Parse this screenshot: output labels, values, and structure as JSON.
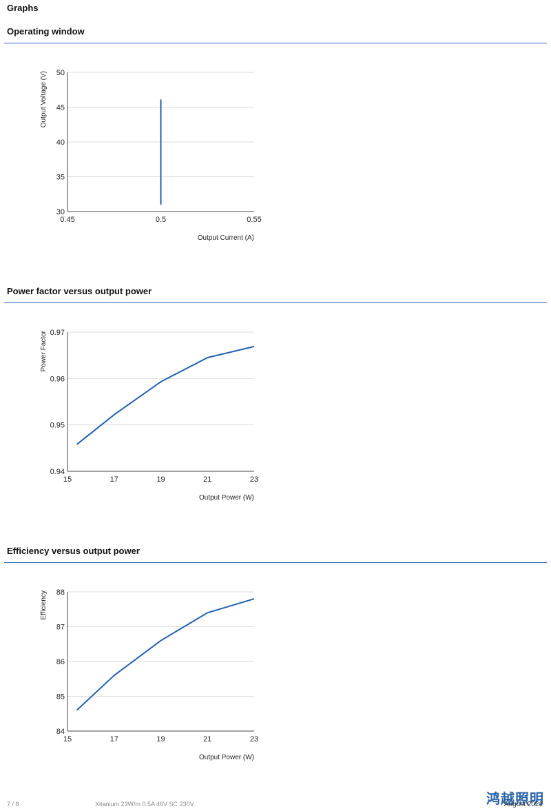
{
  "page": {
    "heading": "Graphs",
    "footer": {
      "page_number": "7 / 8",
      "product": "Xitanium 23W/m 0.5A 46V SC 230V",
      "brand": "鸿越照明",
      "date": "August 2021"
    }
  },
  "sections": [
    {
      "title": "Operating window"
    },
    {
      "title": "Power factor versus output power"
    },
    {
      "title": "Efficiency versus output power"
    }
  ],
  "colors": {
    "line": "#1f5fae",
    "grid": "#dddddd",
    "rule": "#2b63b5"
  },
  "chart_data": [
    {
      "type": "line",
      "xlabel": "Output Current (A)",
      "ylabel": "Output Voltage (V)",
      "xlim": [
        0.45,
        0.55
      ],
      "ylim": [
        30,
        50
      ],
      "xticks": [
        "0.45",
        "0.5",
        "0.55"
      ],
      "yticks": [
        "30",
        "35",
        "40",
        "45",
        "50"
      ],
      "grid": true,
      "series": [
        {
          "x": [
            0.5,
            0.5
          ],
          "y": [
            31,
            46.1
          ]
        }
      ]
    },
    {
      "type": "line",
      "xlabel": "Output Power (W)",
      "ylabel": "Power Factor",
      "xlim": [
        15,
        23
      ],
      "ylim": [
        0.94,
        0.97
      ],
      "xticks": [
        "15",
        "17",
        "19",
        "21",
        "23"
      ],
      "yticks": [
        "0.94",
        "0.95",
        "0.96",
        "0.97"
      ],
      "grid": true,
      "series": [
        {
          "x": [
            15.4,
            17,
            19,
            21,
            23
          ],
          "y": [
            0.9458,
            0.9522,
            0.9593,
            0.9645,
            0.9669
          ]
        }
      ]
    },
    {
      "type": "line",
      "xlabel": "Output Power (W)",
      "ylabel": "Efficiency",
      "xlim": [
        15,
        23
      ],
      "ylim": [
        84,
        88
      ],
      "xticks": [
        "15",
        "17",
        "19",
        "21",
        "23"
      ],
      "yticks": [
        "84",
        "85",
        "86",
        "87",
        "88"
      ],
      "grid": true,
      "series": [
        {
          "x": [
            15.4,
            17,
            19,
            21,
            23
          ],
          "y": [
            84.6,
            85.6,
            86.6,
            87.4,
            87.8
          ]
        }
      ]
    }
  ]
}
